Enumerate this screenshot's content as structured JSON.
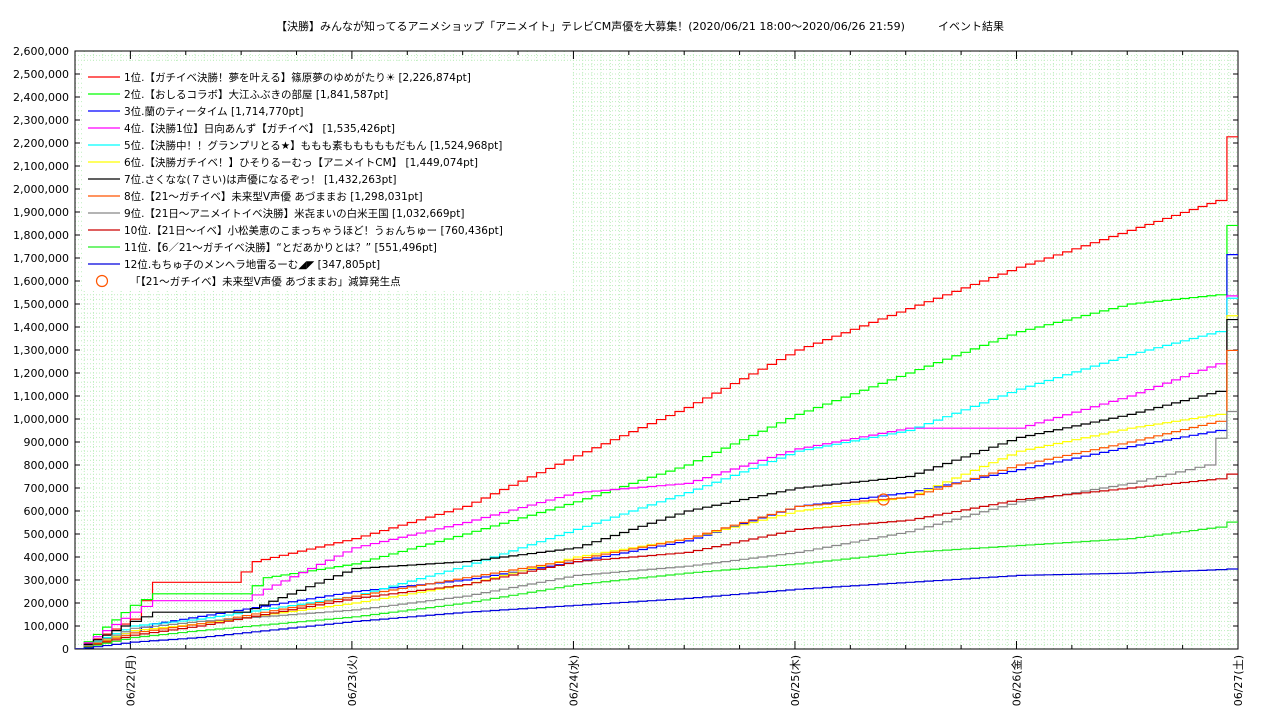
{
  "chart_data": {
    "type": "line",
    "title": "【決勝】みんなが知ってるアニメショップ「アニメイト」テレビCM声優を大募集！(2020/06/21 18:00〜2020/06/26 21:59)　　　イベント結果",
    "xlabel": "",
    "ylabel": "",
    "x_ticks": [
      "06/22(月)",
      "06/23(火)",
      "06/24(水)",
      "06/25(木)",
      "06/26(金)",
      "06/27(土)"
    ],
    "y_ticks": [
      "0",
      "100,000",
      "200,000",
      "300,000",
      "400,000",
      "500,000",
      "600,000",
      "700,000",
      "800,000",
      "900,000",
      "1,000,000",
      "1,100,000",
      "1,200,000",
      "1,300,000",
      "1,400,000",
      "1,500,000",
      "1,600,000",
      "1,700,000",
      "1,800,000",
      "1,900,000",
      "2,000,000",
      "2,100,000",
      "2,200,000",
      "2,300,000",
      "2,400,000",
      "2,500,000",
      "2,600,000"
    ],
    "x_range_days": [
      -0.25,
      5.0
    ],
    "ylim": [
      0,
      2600000
    ],
    "grid": true,
    "legend_position": "top-left",
    "series": [
      {
        "name": "1位.【ガチイベ決勝！夢を叶える】篠原夢のゆめがたり☀ [2,226,874pt]",
        "color": "#ff0000",
        "points": [
          [
            -0.25,
            0
          ],
          [
            0,
            130000
          ],
          [
            0.1,
            290000
          ],
          [
            0.45,
            290000
          ],
          [
            0.55,
            380000
          ],
          [
            1,
            480000
          ],
          [
            1.5,
            620000
          ],
          [
            2,
            840000
          ],
          [
            2.5,
            1050000
          ],
          [
            3,
            1300000
          ],
          [
            3.5,
            1480000
          ],
          [
            4,
            1660000
          ],
          [
            4.5,
            1820000
          ],
          [
            4.9,
            1950000
          ],
          [
            4.95,
            2226874
          ],
          [
            5.0,
            2226874
          ]
        ]
      },
      {
        "name": "2位.【おしるコラボ】大江ふぶきの部屋 [1,841,587pt]",
        "color": "#00ff00",
        "points": [
          [
            -0.25,
            0
          ],
          [
            0,
            190000
          ],
          [
            0.1,
            240000
          ],
          [
            0.5,
            240000
          ],
          [
            0.6,
            310000
          ],
          [
            1,
            370000
          ],
          [
            1.5,
            500000
          ],
          [
            2,
            640000
          ],
          [
            2.5,
            800000
          ],
          [
            3,
            1020000
          ],
          [
            3.5,
            1200000
          ],
          [
            4,
            1380000
          ],
          [
            4.5,
            1500000
          ],
          [
            4.9,
            1540000
          ],
          [
            4.95,
            1841587
          ],
          [
            5.0,
            1841587
          ]
        ]
      },
      {
        "name": "3位.蘭のティータイム [1,714,770pt]",
        "color": "#0000ff",
        "points": [
          [
            -0.25,
            0
          ],
          [
            0,
            80000
          ],
          [
            0.1,
            110000
          ],
          [
            1,
            250000
          ],
          [
            1.5,
            300000
          ],
          [
            2,
            380000
          ],
          [
            2.5,
            470000
          ],
          [
            3,
            620000
          ],
          [
            3.5,
            680000
          ],
          [
            4,
            780000
          ],
          [
            4.5,
            880000
          ],
          [
            4.9,
            950000
          ],
          [
            4.95,
            1714770
          ],
          [
            5.0,
            1714770
          ]
        ]
      },
      {
        "name": "4位.【決勝1位】日向あんず【ガチイベ】 [1,535,426pt]",
        "color": "#ff00ff",
        "points": [
          [
            -0.25,
            0
          ],
          [
            0,
            160000
          ],
          [
            0.1,
            210000
          ],
          [
            0.5,
            210000
          ],
          [
            0.6,
            260000
          ],
          [
            1,
            440000
          ],
          [
            1.5,
            550000
          ],
          [
            2,
            680000
          ],
          [
            2.5,
            720000
          ],
          [
            3,
            870000
          ],
          [
            3.5,
            960000
          ],
          [
            4,
            960000
          ],
          [
            4.5,
            1100000
          ],
          [
            4.9,
            1240000
          ],
          [
            4.95,
            1535426
          ],
          [
            5.0,
            1535426
          ]
        ]
      },
      {
        "name": "5位.【決勝中！！グランプリとる★】ももも素もももももだもん [1,524,968pt]",
        "color": "#00ffff",
        "points": [
          [
            -0.25,
            0
          ],
          [
            0,
            100000
          ],
          [
            0.3,
            130000
          ],
          [
            1,
            230000
          ],
          [
            1.5,
            360000
          ],
          [
            2,
            520000
          ],
          [
            2.5,
            680000
          ],
          [
            3,
            860000
          ],
          [
            3.5,
            950000
          ],
          [
            4,
            1130000
          ],
          [
            4.5,
            1280000
          ],
          [
            4.9,
            1380000
          ],
          [
            4.95,
            1524968
          ],
          [
            5.0,
            1524968
          ]
        ]
      },
      {
        "name": "6位.【決勝ガチイベ！】ひそりるーむっ【アニメイトCM】 [1,449,074pt]",
        "color": "#ffff00",
        "points": [
          [
            -0.25,
            0
          ],
          [
            0,
            80000
          ],
          [
            0.3,
            110000
          ],
          [
            1,
            200000
          ],
          [
            1.5,
            280000
          ],
          [
            2,
            400000
          ],
          [
            2.5,
            480000
          ],
          [
            3,
            600000
          ],
          [
            3.5,
            660000
          ],
          [
            4,
            860000
          ],
          [
            4.5,
            960000
          ],
          [
            4.9,
            1020000
          ],
          [
            4.95,
            1449074
          ],
          [
            5.0,
            1449074
          ]
        ]
      },
      {
        "name": "7位.さくなな(７さい)は声優になるぞっ！ [1,432,263pt]",
        "color": "#000000",
        "points": [
          [
            -0.25,
            0
          ],
          [
            0,
            120000
          ],
          [
            0.1,
            160000
          ],
          [
            0.5,
            160000
          ],
          [
            1,
            350000
          ],
          [
            1.5,
            380000
          ],
          [
            2,
            440000
          ],
          [
            2.5,
            600000
          ],
          [
            3,
            700000
          ],
          [
            3.5,
            750000
          ],
          [
            4,
            920000
          ],
          [
            4.5,
            1020000
          ],
          [
            4.9,
            1120000
          ],
          [
            4.95,
            1432263
          ],
          [
            5.0,
            1432263
          ]
        ]
      },
      {
        "name": "8位.【21〜ガチイベ】未来型V声優 あづままお [1,298,031pt]",
        "color": "#ff5500",
        "points": [
          [
            -0.25,
            0
          ],
          [
            0,
            70000
          ],
          [
            0.3,
            110000
          ],
          [
            1,
            230000
          ],
          [
            1.5,
            310000
          ],
          [
            2,
            390000
          ],
          [
            2.5,
            480000
          ],
          [
            3,
            620000
          ],
          [
            3.5,
            660000
          ],
          [
            4,
            800000
          ],
          [
            4.5,
            900000
          ],
          [
            4.9,
            990000
          ],
          [
            4.95,
            1298031
          ],
          [
            5.0,
            1298031
          ]
        ]
      },
      {
        "name": "9位.【21日〜アニメイトイベ決勝】米㐂まいの白米王国 [1,032,669pt]",
        "color": "#888888",
        "points": [
          [
            -0.25,
            0
          ],
          [
            0,
            90000
          ],
          [
            0.3,
            120000
          ],
          [
            1,
            170000
          ],
          [
            1.5,
            230000
          ],
          [
            2,
            320000
          ],
          [
            2.5,
            360000
          ],
          [
            3,
            420000
          ],
          [
            3.5,
            510000
          ],
          [
            4,
            640000
          ],
          [
            4.5,
            720000
          ],
          [
            4.85,
            800000
          ],
          [
            4.95,
            1032669
          ],
          [
            5.0,
            1032669
          ]
        ]
      },
      {
        "name": "10位.【21日〜イベ】小松美恵のこまっちゃうほど！うぉんちゅー [760,436pt]",
        "color": "#cc0000",
        "points": [
          [
            -0.25,
            0
          ],
          [
            0,
            60000
          ],
          [
            0.3,
            100000
          ],
          [
            1,
            220000
          ],
          [
            1.5,
            280000
          ],
          [
            2,
            380000
          ],
          [
            2.5,
            420000
          ],
          [
            3,
            520000
          ],
          [
            3.5,
            560000
          ],
          [
            4,
            650000
          ],
          [
            4.5,
            700000
          ],
          [
            4.9,
            740000
          ],
          [
            4.95,
            760436
          ],
          [
            5.0,
            760436
          ]
        ]
      },
      {
        "name": "11位.【6／21〜ガチイベ決勝】“とだあかりとは？” [551,496pt]",
        "color": "#22ee22",
        "points": [
          [
            -0.25,
            0
          ],
          [
            0,
            50000
          ],
          [
            0.3,
            80000
          ],
          [
            1,
            140000
          ],
          [
            1.5,
            200000
          ],
          [
            2,
            280000
          ],
          [
            2.5,
            330000
          ],
          [
            3,
            370000
          ],
          [
            3.5,
            420000
          ],
          [
            4,
            450000
          ],
          [
            4.5,
            480000
          ],
          [
            4.9,
            530000
          ],
          [
            4.95,
            551496
          ],
          [
            5.0,
            551496
          ]
        ]
      },
      {
        "name": "12位.もちゅ子のメンヘラ地雷るーむ◢◤ [347,805pt]",
        "color": "#0000dd",
        "points": [
          [
            -0.25,
            0
          ],
          [
            0,
            30000
          ],
          [
            0.3,
            50000
          ],
          [
            1,
            120000
          ],
          [
            1.5,
            160000
          ],
          [
            2,
            190000
          ],
          [
            2.5,
            220000
          ],
          [
            3,
            260000
          ],
          [
            3.5,
            290000
          ],
          [
            4,
            320000
          ],
          [
            4.5,
            330000
          ],
          [
            4.9,
            345000
          ],
          [
            4.95,
            347805
          ],
          [
            5.0,
            347805
          ]
        ]
      }
    ],
    "markers": [
      {
        "name": "「【21〜ガチイベ】未来型V声優 あづままお」減算発生点",
        "color": "#ff5500",
        "x": 3.4,
        "y": 650000
      }
    ]
  }
}
